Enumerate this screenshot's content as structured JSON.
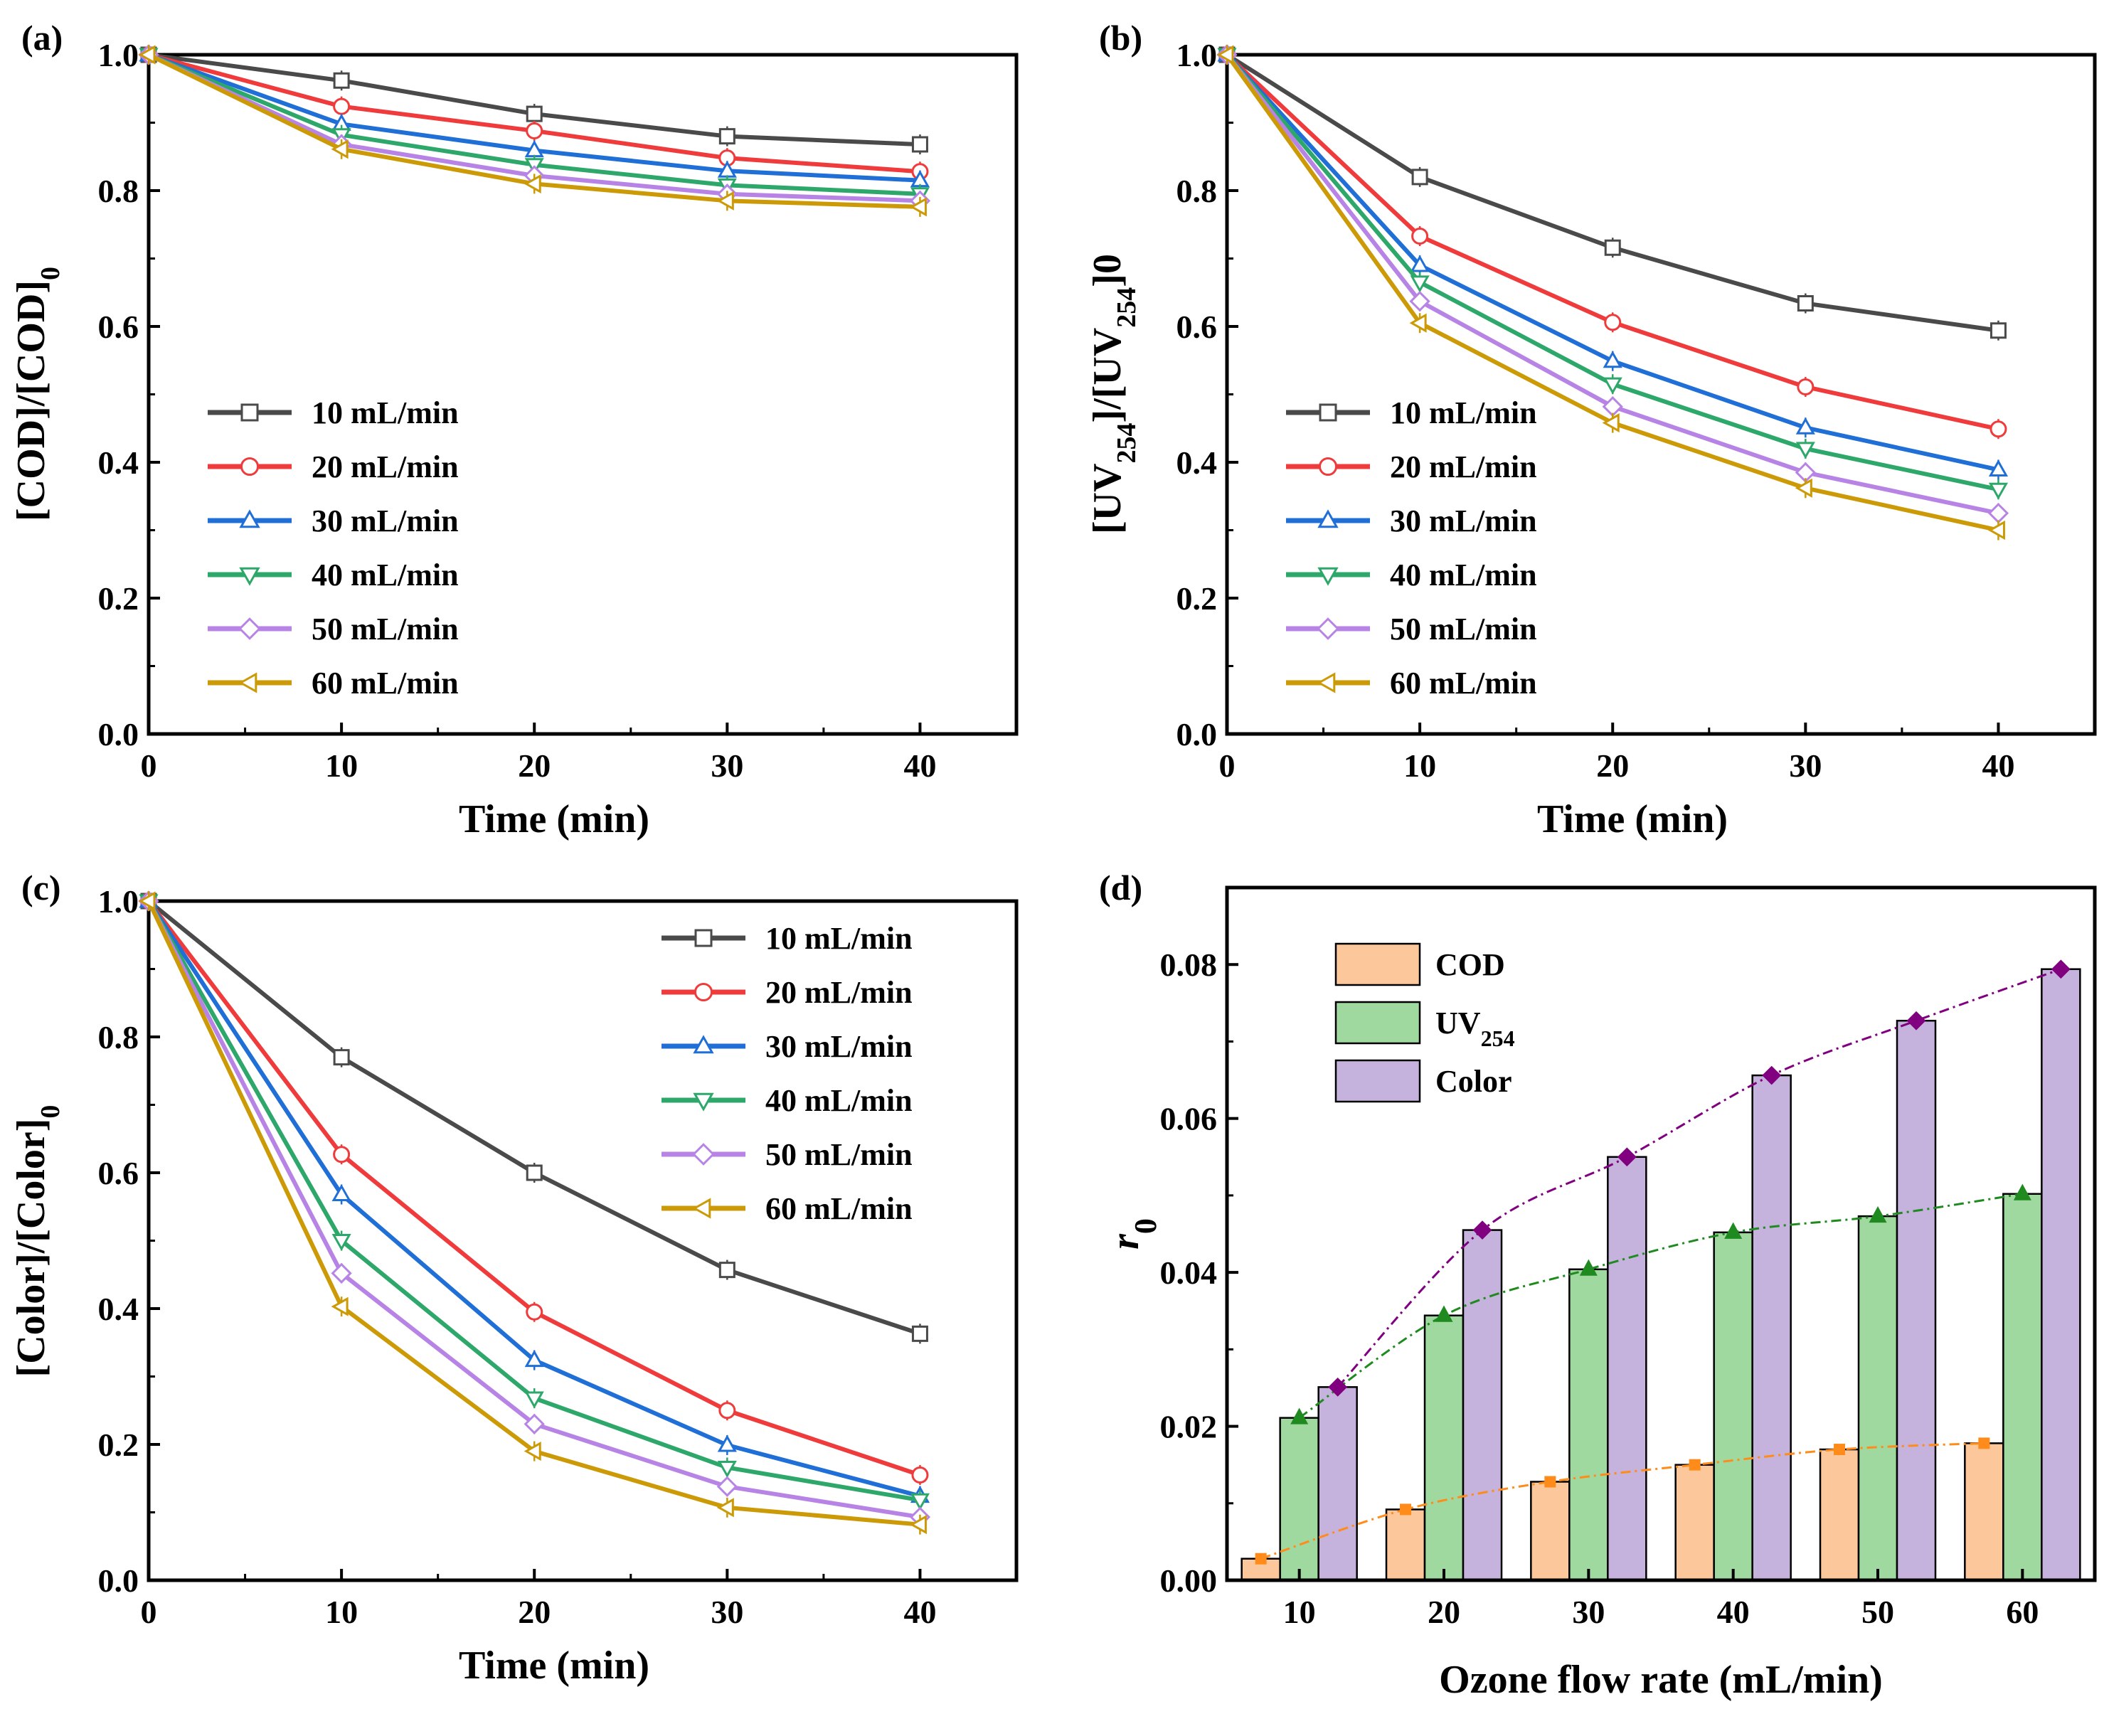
{
  "colors": {
    "10 mL/min": "#4a4a4a",
    "20 mL/min": "#ef3b3b",
    "30 mL/min": "#1f6fd6",
    "40 mL/min": "#2ea86a",
    "50 mL/min": "#b784e6",
    "60 mL/min": "#cc9a06",
    "COD": "#fcc79a",
    "UV254": "#9fd99f",
    "Color": "#c5b2dd",
    "COD_line": "#ff8c1a",
    "UV254_line": "#1f8a1f",
    "Color_line": "#800080"
  },
  "chart_data": [
    {
      "panel": "(a)",
      "type": "line",
      "xlabel": "Time (min)",
      "ylabel_main": "[COD]/[COD]",
      "ylabel_sub": "0",
      "xlim": [
        0,
        45
      ],
      "ylim": [
        0,
        1.0
      ],
      "xticks": [
        "0",
        "10",
        "20",
        "30",
        "40"
      ],
      "yticks": [
        "0.0",
        "0.2",
        "0.4",
        "0.6",
        "0.8",
        "1.0"
      ],
      "legend_position": "center-left",
      "x": [
        0,
        10,
        20,
        30,
        40
      ],
      "series": [
        {
          "name": "10 mL/min",
          "marker": "square",
          "values": [
            1.0,
            0.962,
            0.913,
            0.88,
            0.868
          ]
        },
        {
          "name": "20 mL/min",
          "marker": "circle",
          "values": [
            1.0,
            0.924,
            0.888,
            0.848,
            0.828
          ]
        },
        {
          "name": "30 mL/min",
          "marker": "triangle-up",
          "values": [
            1.0,
            0.898,
            0.859,
            0.829,
            0.815
          ]
        },
        {
          "name": "40 mL/min",
          "marker": "triangle-down",
          "values": [
            1.0,
            0.882,
            0.838,
            0.808,
            0.795
          ]
        },
        {
          "name": "50 mL/min",
          "marker": "diamond",
          "values": [
            1.0,
            0.868,
            0.822,
            0.795,
            0.785
          ]
        },
        {
          "name": "60 mL/min",
          "marker": "triangle-left",
          "values": [
            1.0,
            0.861,
            0.81,
            0.785,
            0.776
          ]
        }
      ]
    },
    {
      "panel": "(b)",
      "type": "line",
      "xlabel": "Time (min)",
      "ylabel_pre": "[UV",
      "ylabel_sub1": "254",
      "ylabel_mid": "]/[UV",
      "ylabel_sub2": "254",
      "ylabel_post": "]",
      "ylabel_sub3": "0",
      "xlim": [
        0,
        45
      ],
      "ylim": [
        0,
        1.0
      ],
      "xticks": [
        "0",
        "10",
        "20",
        "30",
        "40"
      ],
      "yticks": [
        "0.0",
        "0.2",
        "0.4",
        "0.6",
        "0.8",
        "1.0"
      ],
      "legend_position": "center-left",
      "x": [
        0,
        10,
        20,
        30,
        40
      ],
      "series": [
        {
          "name": "10 mL/min",
          "marker": "square",
          "values": [
            1.0,
            0.82,
            0.716,
            0.634,
            0.594
          ]
        },
        {
          "name": "20 mL/min",
          "marker": "circle",
          "values": [
            1.0,
            0.733,
            0.606,
            0.511,
            0.449
          ]
        },
        {
          "name": "30 mL/min",
          "marker": "triangle-up",
          "values": [
            1.0,
            0.69,
            0.549,
            0.451,
            0.389
          ]
        },
        {
          "name": "40 mL/min",
          "marker": "triangle-down",
          "values": [
            1.0,
            0.665,
            0.515,
            0.42,
            0.36
          ]
        },
        {
          "name": "50 mL/min",
          "marker": "diamond",
          "values": [
            1.0,
            0.637,
            0.482,
            0.385,
            0.325
          ]
        },
        {
          "name": "60 mL/min",
          "marker": "triangle-left",
          "values": [
            1.0,
            0.605,
            0.458,
            0.362,
            0.3
          ]
        }
      ]
    },
    {
      "panel": "(c)",
      "type": "line",
      "xlabel": "Time (min)",
      "ylabel_main": "[Color]/[Color]",
      "ylabel_sub": "0",
      "xlim": [
        0,
        45
      ],
      "ylim": [
        0,
        1.0
      ],
      "xticks": [
        "0",
        "10",
        "20",
        "30",
        "40"
      ],
      "yticks": [
        "0.0",
        "0.2",
        "0.4",
        "0.6",
        "0.8",
        "1.0"
      ],
      "legend_position": "top-right",
      "x": [
        0,
        10,
        20,
        30,
        40
      ],
      "series": [
        {
          "name": "10 mL/min",
          "marker": "square",
          "values": [
            1.0,
            0.77,
            0.6,
            0.457,
            0.363
          ]
        },
        {
          "name": "20 mL/min",
          "marker": "circle",
          "values": [
            1.0,
            0.627,
            0.395,
            0.25,
            0.155
          ]
        },
        {
          "name": "30 mL/min",
          "marker": "triangle-up",
          "values": [
            1.0,
            0.568,
            0.324,
            0.199,
            0.124
          ]
        },
        {
          "name": "40 mL/min",
          "marker": "triangle-down",
          "values": [
            1.0,
            0.5,
            0.268,
            0.166,
            0.118
          ]
        },
        {
          "name": "50 mL/min",
          "marker": "diamond",
          "values": [
            1.0,
            0.452,
            0.23,
            0.138,
            0.093
          ]
        },
        {
          "name": "60 mL/min",
          "marker": "triangle-left",
          "values": [
            1.0,
            0.403,
            0.19,
            0.107,
            0.082
          ]
        }
      ]
    },
    {
      "panel": "(d)",
      "type": "bar",
      "xlabel": "Ozone flow rate (mL/min)",
      "ylabel_main": "r",
      "ylabel_sub": "0",
      "ylim": [
        0,
        0.09
      ],
      "categories": [
        "10",
        "20",
        "30",
        "40",
        "50",
        "60"
      ],
      "yticks": [
        "0.00",
        "0.02",
        "0.04",
        "0.06",
        "0.08"
      ],
      "legend_position": "top-left",
      "series": [
        {
          "name": "COD",
          "label": "COD",
          "sub": "",
          "values": [
            0.0028,
            0.0092,
            0.0128,
            0.015,
            0.017,
            0.0178
          ]
        },
        {
          "name": "UV254",
          "label": "UV",
          "sub": "254",
          "values": [
            0.0211,
            0.0344,
            0.0404,
            0.0452,
            0.0473,
            0.0502
          ]
        },
        {
          "name": "Color",
          "label": "Color",
          "sub": "",
          "values": [
            0.0251,
            0.0455,
            0.055,
            0.0656,
            0.0727,
            0.0794
          ]
        }
      ]
    }
  ]
}
